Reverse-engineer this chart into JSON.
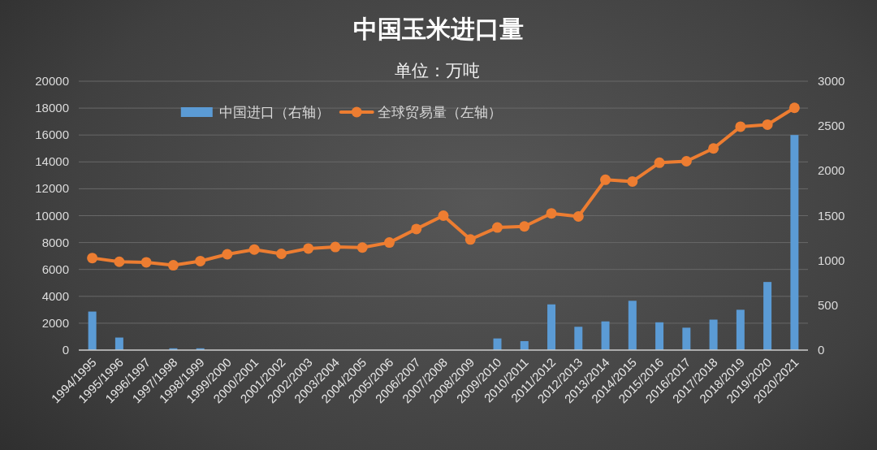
{
  "chart_data": {
    "type": "bar",
    "title": "中国玉米进口量",
    "subtitle": "单位：万吨",
    "categories": [
      "1994/1995",
      "1995/1996",
      "1996/1997",
      "1997/1998",
      "1998/1999",
      "1999/2000",
      "2000/2001",
      "2001/2002",
      "2002/2003",
      "2003/2004",
      "2004/2005",
      "2005/2006",
      "2006/2007",
      "2007/2008",
      "2008/2009",
      "2009/2010",
      "2010/2011",
      "2011/2012",
      "2012/2013",
      "2013/2014",
      "2014/2015",
      "2015/2016",
      "2016/2017",
      "2017/2018",
      "2018/2019",
      "2019/2020",
      "2020/2021"
    ],
    "series": [
      {
        "name": "中国进口（右轴）",
        "axis": "y2",
        "color": "#5b9bd5",
        "values": [
          430,
          140,
          0,
          20,
          20,
          0,
          0,
          0,
          0,
          0,
          0,
          0,
          0,
          0,
          0,
          130,
          100,
          510,
          260,
          320,
          550,
          310,
          250,
          340,
          450,
          760,
          2400
        ]
      },
      {
        "name": "全球贸易量（左轴）",
        "type": "line",
        "color": "#ed7d31",
        "marker": "circle",
        "values": [
          6850,
          6570,
          6530,
          6310,
          6620,
          7130,
          7480,
          7160,
          7560,
          7670,
          7630,
          8000,
          9010,
          10000,
          8230,
          9120,
          9200,
          10170,
          9940,
          12670,
          12540,
          13940,
          14050,
          15000,
          16620,
          16770,
          18020
        ]
      }
    ],
    "ylim": [
      0,
      20000
    ],
    "yticks": [
      0,
      2000,
      4000,
      6000,
      8000,
      10000,
      12000,
      14000,
      16000,
      18000,
      20000
    ],
    "y2lim": [
      0,
      3000
    ],
    "y2ticks": [
      0,
      500,
      1000,
      1500,
      2000,
      2500,
      3000
    ],
    "grid": "y",
    "legend": "top"
  }
}
